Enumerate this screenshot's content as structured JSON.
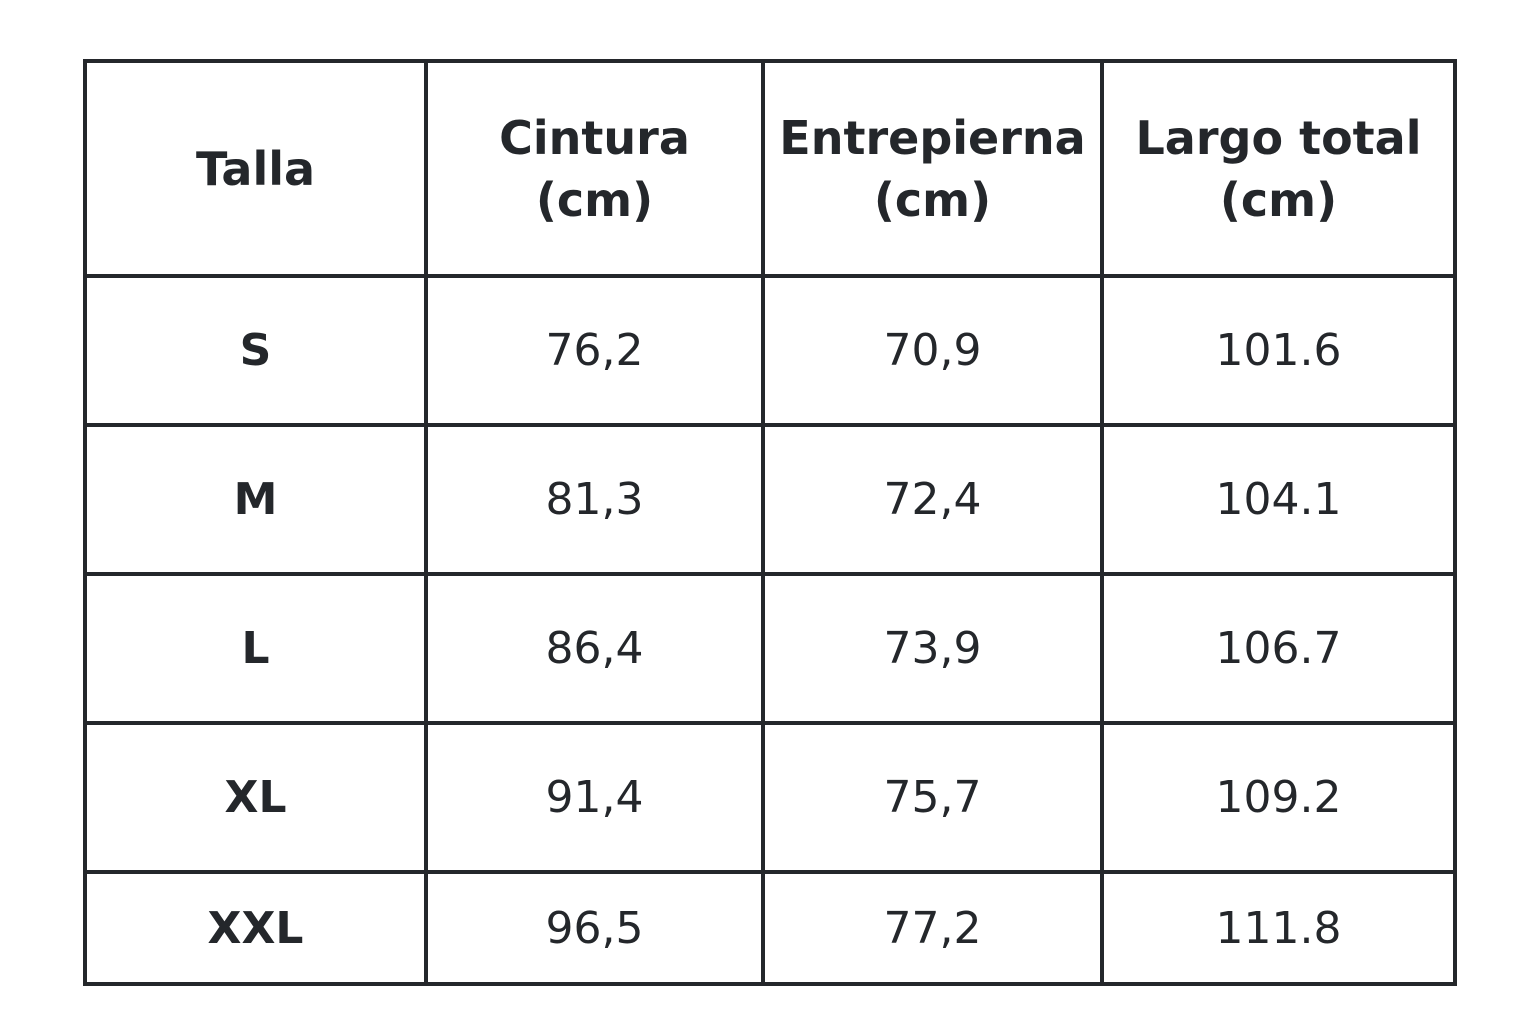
{
  "table": {
    "header": [
      "Talla",
      "Cintura\n(cm)",
      "Entrepierna\n(cm)",
      "Largo total\n(cm)"
    ],
    "rows": [
      [
        "S",
        "76,2",
        "70,9",
        "101.6"
      ],
      [
        "M",
        "81,3",
        "72,4",
        "104.1"
      ],
      [
        "L",
        "86,4",
        "73,9",
        "106.7"
      ],
      [
        "XL",
        "91,4",
        "75,7",
        "109.2"
      ],
      [
        "XXL",
        "96,5",
        "77,2",
        "111.8"
      ]
    ]
  }
}
